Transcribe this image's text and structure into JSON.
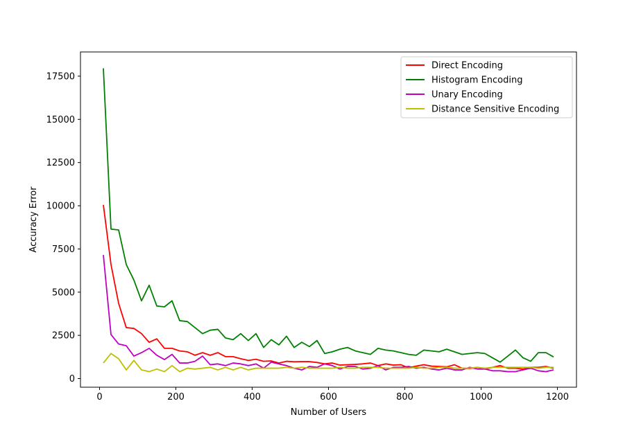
{
  "chart_data": {
    "type": "line",
    "title": "",
    "xlabel": "Number of Users",
    "ylabel": "Accuracy Error",
    "xlim": [
      -50,
      1250
    ],
    "ylim": [
      -500,
      18900
    ],
    "xticks": [
      0,
      200,
      400,
      600,
      800,
      1000,
      1200
    ],
    "yticks": [
      0,
      2500,
      5000,
      7500,
      10000,
      12500,
      15000,
      17500
    ],
    "grid": false,
    "legend_position": "upper right",
    "x": [
      10,
      30,
      50,
      70,
      90,
      110,
      130,
      150,
      170,
      190,
      210,
      230,
      250,
      270,
      290,
      310,
      330,
      350,
      370,
      390,
      410,
      430,
      450,
      470,
      490,
      510,
      530,
      550,
      570,
      590,
      610,
      630,
      650,
      670,
      690,
      710,
      730,
      750,
      770,
      790,
      810,
      830,
      850,
      870,
      890,
      910,
      930,
      950,
      970,
      990,
      1010,
      1030,
      1050,
      1070,
      1090,
      1110,
      1130,
      1150,
      1170,
      1190
    ],
    "series": [
      {
        "name": "Direct Encoding",
        "color": "#ff0000",
        "values": [
          10050,
          6600,
          4350,
          2950,
          2900,
          2600,
          2100,
          2300,
          1750,
          1750,
          1600,
          1550,
          1350,
          1500,
          1350,
          1500,
          1270,
          1270,
          1150,
          1050,
          1120,
          1000,
          1020,
          900,
          1000,
          970,
          980,
          980,
          930,
          850,
          900,
          780,
          800,
          820,
          850,
          900,
          750,
          850,
          780,
          800,
          620,
          720,
          800,
          720,
          700,
          680,
          800,
          600,
          580,
          650,
          550,
          650,
          750,
          600,
          600,
          550,
          650,
          650,
          700,
          600
        ]
      },
      {
        "name": "Histogram Encoding",
        "color": "#008000",
        "values": [
          17950,
          8650,
          8600,
          6600,
          5700,
          4500,
          5400,
          4200,
          4150,
          4500,
          3350,
          3300,
          2950,
          2600,
          2800,
          2850,
          2350,
          2250,
          2600,
          2200,
          2600,
          1800,
          2250,
          1950,
          2450,
          1800,
          2100,
          1850,
          2200,
          1450,
          1550,
          1700,
          1800,
          1600,
          1500,
          1400,
          1750,
          1650,
          1600,
          1500,
          1400,
          1350,
          1650,
          1600,
          1550,
          1700,
          1550,
          1400,
          1450,
          1500,
          1450,
          1200,
          950,
          1300,
          1650,
          1200,
          1000,
          1500,
          1500,
          1250
        ]
      },
      {
        "name": "Unary Encoding",
        "color": "#bf00bf",
        "values": [
          7150,
          2550,
          2000,
          1900,
          1300,
          1500,
          1750,
          1350,
          1100,
          1400,
          900,
          900,
          1000,
          1300,
          800,
          850,
          750,
          900,
          850,
          750,
          850,
          600,
          950,
          850,
          750,
          600,
          500,
          700,
          650,
          850,
          750,
          550,
          700,
          700,
          550,
          600,
          750,
          500,
          650,
          650,
          700,
          600,
          650,
          550,
          500,
          600,
          500,
          500,
          650,
          550,
          550,
          450,
          450,
          400,
          400,
          500,
          600,
          450,
          400,
          500
        ]
      },
      {
        "name": "Distance Sensitive Encoding",
        "color": "#bfbf00",
        "values": [
          900,
          1450,
          1150,
          500,
          1050,
          500,
          400,
          550,
          400,
          750,
          400,
          600,
          550,
          600,
          650,
          500,
          650,
          500,
          650,
          500,
          600,
          600,
          600,
          600,
          650,
          600,
          650,
          600,
          600,
          600,
          600,
          650,
          600,
          600,
          650,
          650,
          650,
          600,
          600,
          600,
          600,
          650,
          600,
          600,
          650,
          650,
          600,
          600,
          600,
          650,
          600,
          650,
          650,
          650,
          650,
          650,
          650,
          600,
          650,
          650
        ]
      }
    ]
  }
}
